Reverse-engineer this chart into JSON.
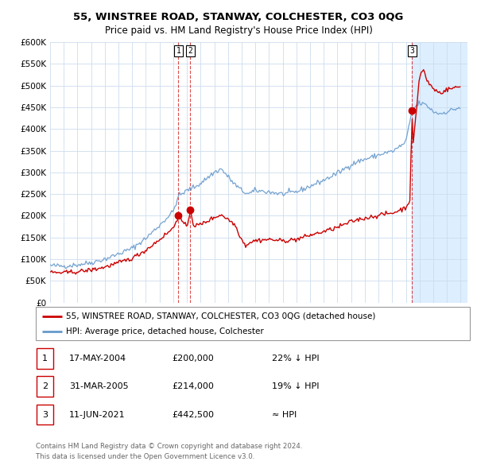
{
  "title": "55, WINSTREE ROAD, STANWAY, COLCHESTER, CO3 0QG",
  "subtitle": "Price paid vs. HM Land Registry's House Price Index (HPI)",
  "property_label": "55, WINSTREE ROAD, STANWAY, COLCHESTER, CO3 0QG (detached house)",
  "hpi_label": "HPI: Average price, detached house, Colchester",
  "footer1": "Contains HM Land Registry data © Crown copyright and database right 2024.",
  "footer2": "This data is licensed under the Open Government Licence v3.0.",
  "transactions": [
    {
      "num": 1,
      "date": "17-MAY-2004",
      "price": "£200,000",
      "hpi": "22% ↓ HPI"
    },
    {
      "num": 2,
      "date": "31-MAR-2005",
      "price": "£214,000",
      "hpi": "19% ↓ HPI"
    },
    {
      "num": 3,
      "date": "11-JUN-2021",
      "price": "£442,500",
      "hpi": "≈ HPI"
    }
  ],
  "sale_dates_decimal": [
    2004.371,
    2005.247,
    2021.443
  ],
  "sale_prices": [
    200000,
    214000,
    442500
  ],
  "property_color": "#cc0000",
  "hpi_color": "#6699cc",
  "vline_color": "#cc0000",
  "shade_color": "#ddeeff",
  "background_color": "#ffffff",
  "grid_color": "#ccddee",
  "ylim": [
    0,
    600000
  ],
  "ytick_vals": [
    0,
    50000,
    100000,
    150000,
    200000,
    250000,
    300000,
    350000,
    400000,
    450000,
    500000,
    550000,
    600000
  ],
  "ytick_labels": [
    "£0",
    "£50K",
    "£100K",
    "£150K",
    "£200K",
    "£250K",
    "£300K",
    "£350K",
    "£400K",
    "£450K",
    "£500K",
    "£550K",
    "£600K"
  ],
  "xlim": [
    1995.0,
    2025.5
  ]
}
